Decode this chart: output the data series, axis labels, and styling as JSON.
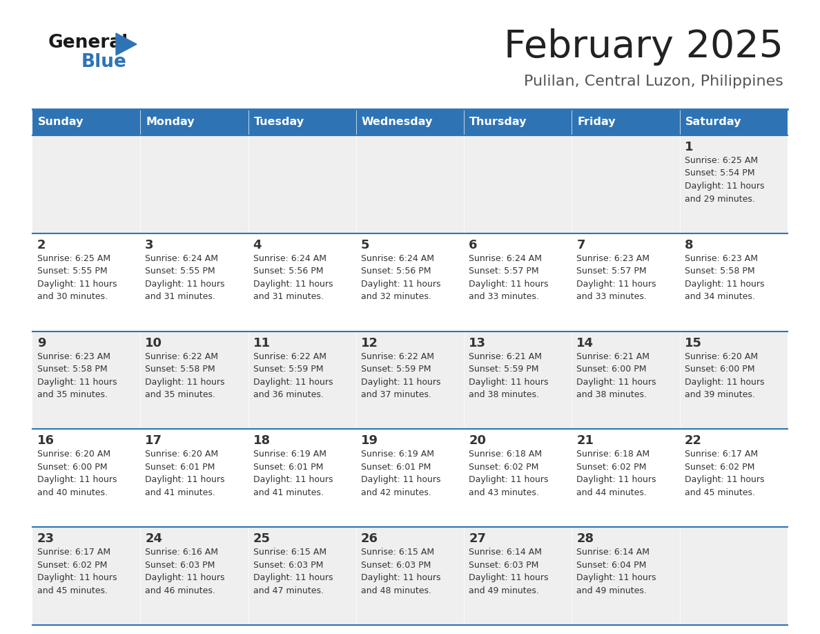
{
  "title": "February 2025",
  "subtitle": "Pulilan, Central Luzon, Philippines",
  "header_bg": "#2E74B5",
  "header_text_color": "#FFFFFF",
  "cell_bg_light": "#EFEFEF",
  "cell_bg_white": "#FFFFFF",
  "border_color": "#2E74B5",
  "day_headers": [
    "Sunday",
    "Monday",
    "Tuesday",
    "Wednesday",
    "Thursday",
    "Friday",
    "Saturday"
  ],
  "title_color": "#222222",
  "subtitle_color": "#555555",
  "text_color": "#333333",
  "calendar_data": [
    [
      {
        "day": "",
        "sunrise": "",
        "sunset": "",
        "daylight_h": "",
        "daylight_m": ""
      },
      {
        "day": "",
        "sunrise": "",
        "sunset": "",
        "daylight_h": "",
        "daylight_m": ""
      },
      {
        "day": "",
        "sunrise": "",
        "sunset": "",
        "daylight_h": "",
        "daylight_m": ""
      },
      {
        "day": "",
        "sunrise": "",
        "sunset": "",
        "daylight_h": "",
        "daylight_m": ""
      },
      {
        "day": "",
        "sunrise": "",
        "sunset": "",
        "daylight_h": "",
        "daylight_m": ""
      },
      {
        "day": "",
        "sunrise": "",
        "sunset": "",
        "daylight_h": "",
        "daylight_m": ""
      },
      {
        "day": "1",
        "sunrise": "6:25 AM",
        "sunset": "5:54 PM",
        "daylight_h": "11 hours",
        "daylight_m": "and 29 minutes."
      }
    ],
    [
      {
        "day": "2",
        "sunrise": "6:25 AM",
        "sunset": "5:55 PM",
        "daylight_h": "11 hours",
        "daylight_m": "and 30 minutes."
      },
      {
        "day": "3",
        "sunrise": "6:24 AM",
        "sunset": "5:55 PM",
        "daylight_h": "11 hours",
        "daylight_m": "and 31 minutes."
      },
      {
        "day": "4",
        "sunrise": "6:24 AM",
        "sunset": "5:56 PM",
        "daylight_h": "11 hours",
        "daylight_m": "and 31 minutes."
      },
      {
        "day": "5",
        "sunrise": "6:24 AM",
        "sunset": "5:56 PM",
        "daylight_h": "11 hours",
        "daylight_m": "and 32 minutes."
      },
      {
        "day": "6",
        "sunrise": "6:24 AM",
        "sunset": "5:57 PM",
        "daylight_h": "11 hours",
        "daylight_m": "and 33 minutes."
      },
      {
        "day": "7",
        "sunrise": "6:23 AM",
        "sunset": "5:57 PM",
        "daylight_h": "11 hours",
        "daylight_m": "and 33 minutes."
      },
      {
        "day": "8",
        "sunrise": "6:23 AM",
        "sunset": "5:58 PM",
        "daylight_h": "11 hours",
        "daylight_m": "and 34 minutes."
      }
    ],
    [
      {
        "day": "9",
        "sunrise": "6:23 AM",
        "sunset": "5:58 PM",
        "daylight_h": "11 hours",
        "daylight_m": "and 35 minutes."
      },
      {
        "day": "10",
        "sunrise": "6:22 AM",
        "sunset": "5:58 PM",
        "daylight_h": "11 hours",
        "daylight_m": "and 35 minutes."
      },
      {
        "day": "11",
        "sunrise": "6:22 AM",
        "sunset": "5:59 PM",
        "daylight_h": "11 hours",
        "daylight_m": "and 36 minutes."
      },
      {
        "day": "12",
        "sunrise": "6:22 AM",
        "sunset": "5:59 PM",
        "daylight_h": "11 hours",
        "daylight_m": "and 37 minutes."
      },
      {
        "day": "13",
        "sunrise": "6:21 AM",
        "sunset": "5:59 PM",
        "daylight_h": "11 hours",
        "daylight_m": "and 38 minutes."
      },
      {
        "day": "14",
        "sunrise": "6:21 AM",
        "sunset": "6:00 PM",
        "daylight_h": "11 hours",
        "daylight_m": "and 38 minutes."
      },
      {
        "day": "15",
        "sunrise": "6:20 AM",
        "sunset": "6:00 PM",
        "daylight_h": "11 hours",
        "daylight_m": "and 39 minutes."
      }
    ],
    [
      {
        "day": "16",
        "sunrise": "6:20 AM",
        "sunset": "6:00 PM",
        "daylight_h": "11 hours",
        "daylight_m": "and 40 minutes."
      },
      {
        "day": "17",
        "sunrise": "6:20 AM",
        "sunset": "6:01 PM",
        "daylight_h": "11 hours",
        "daylight_m": "and 41 minutes."
      },
      {
        "day": "18",
        "sunrise": "6:19 AM",
        "sunset": "6:01 PM",
        "daylight_h": "11 hours",
        "daylight_m": "and 41 minutes."
      },
      {
        "day": "19",
        "sunrise": "6:19 AM",
        "sunset": "6:01 PM",
        "daylight_h": "11 hours",
        "daylight_m": "and 42 minutes."
      },
      {
        "day": "20",
        "sunrise": "6:18 AM",
        "sunset": "6:02 PM",
        "daylight_h": "11 hours",
        "daylight_m": "and 43 minutes."
      },
      {
        "day": "21",
        "sunrise": "6:18 AM",
        "sunset": "6:02 PM",
        "daylight_h": "11 hours",
        "daylight_m": "and 44 minutes."
      },
      {
        "day": "22",
        "sunrise": "6:17 AM",
        "sunset": "6:02 PM",
        "daylight_h": "11 hours",
        "daylight_m": "and 45 minutes."
      }
    ],
    [
      {
        "day": "23",
        "sunrise": "6:17 AM",
        "sunset": "6:02 PM",
        "daylight_h": "11 hours",
        "daylight_m": "and 45 minutes."
      },
      {
        "day": "24",
        "sunrise": "6:16 AM",
        "sunset": "6:03 PM",
        "daylight_h": "11 hours",
        "daylight_m": "and 46 minutes."
      },
      {
        "day": "25",
        "sunrise": "6:15 AM",
        "sunset": "6:03 PM",
        "daylight_h": "11 hours",
        "daylight_m": "and 47 minutes."
      },
      {
        "day": "26",
        "sunrise": "6:15 AM",
        "sunset": "6:03 PM",
        "daylight_h": "11 hours",
        "daylight_m": "and 48 minutes."
      },
      {
        "day": "27",
        "sunrise": "6:14 AM",
        "sunset": "6:03 PM",
        "daylight_h": "11 hours",
        "daylight_m": "and 49 minutes."
      },
      {
        "day": "28",
        "sunrise": "6:14 AM",
        "sunset": "6:04 PM",
        "daylight_h": "11 hours",
        "daylight_m": "and 49 minutes."
      },
      {
        "day": "",
        "sunrise": "",
        "sunset": "",
        "daylight_h": "",
        "daylight_m": ""
      }
    ]
  ]
}
